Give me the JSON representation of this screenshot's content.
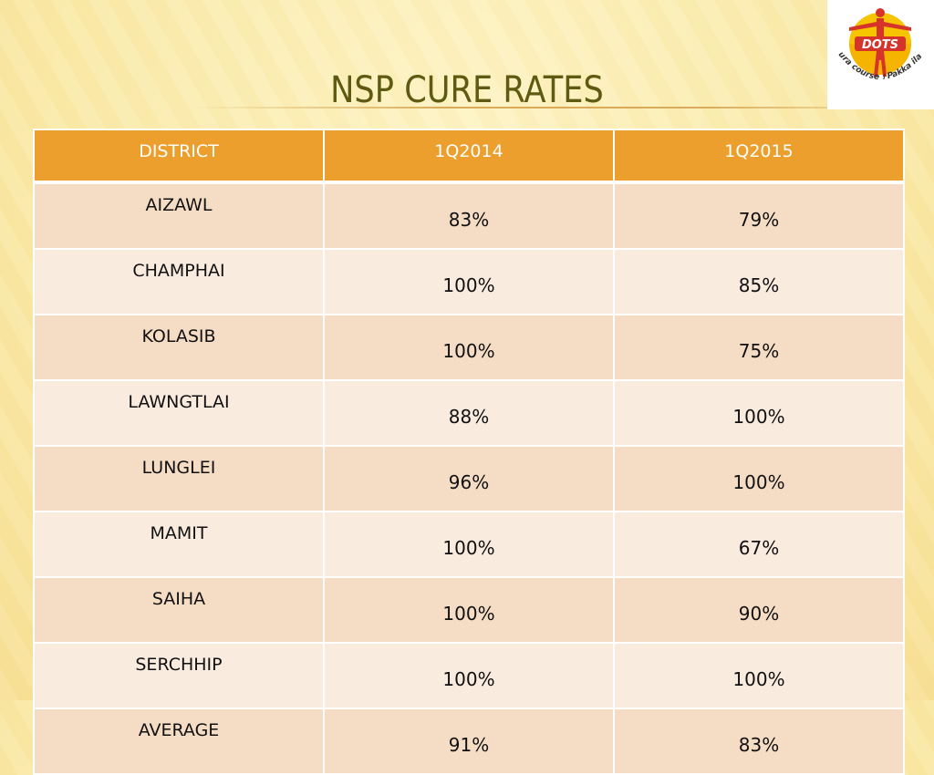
{
  "slide": {
    "title": "NSP CURE RATES"
  },
  "logo": {
    "name": "DOTS",
    "tagline": "Pura course । Pakka ilaaj"
  },
  "table": {
    "headers": [
      "DISTRICT",
      "1Q2014",
      "1Q2015"
    ],
    "rows": [
      {
        "district": "AIZAWL",
        "q2014": "83%",
        "q2015": "79%",
        "q2014_highlight": true,
        "q2015_highlight": true
      },
      {
        "district": "CHAMPHAI",
        "q2014": "100%",
        "q2015": "85%",
        "q2014_highlight": false,
        "q2015_highlight": false
      },
      {
        "district": "KOLASIB",
        "q2014": "100%",
        "q2015": "75%",
        "q2014_highlight": false,
        "q2015_highlight": false
      },
      {
        "district": "LAWNGTLAI",
        "q2014": "88%",
        "q2015": "100%",
        "q2014_highlight": false,
        "q2015_highlight": false
      },
      {
        "district": "LUNGLEI",
        "q2014": "96%",
        "q2015": "100%",
        "q2014_highlight": false,
        "q2015_highlight": false
      },
      {
        "district": "MAMIT",
        "q2014": "100%",
        "q2015": "67%",
        "q2014_highlight": false,
        "q2015_highlight": true
      },
      {
        "district": "SAIHA",
        "q2014": "100%",
        "q2015": "90%",
        "q2014_highlight": false,
        "q2015_highlight": false
      },
      {
        "district": "SERCHHIP",
        "q2014": "100%",
        "q2015": "100%",
        "q2014_highlight": false,
        "q2015_highlight": false
      },
      {
        "district": "AVERAGE",
        "q2014": "91%",
        "q2015": "83%",
        "q2014_highlight": false,
        "q2015_highlight": false
      }
    ]
  },
  "colors": {
    "header_bg": "#ec9f2c",
    "row_odd": "#f5dcc4",
    "row_even": "#faebdf",
    "highlight_text": "#e8161b",
    "title_text": "#5f5a12"
  }
}
